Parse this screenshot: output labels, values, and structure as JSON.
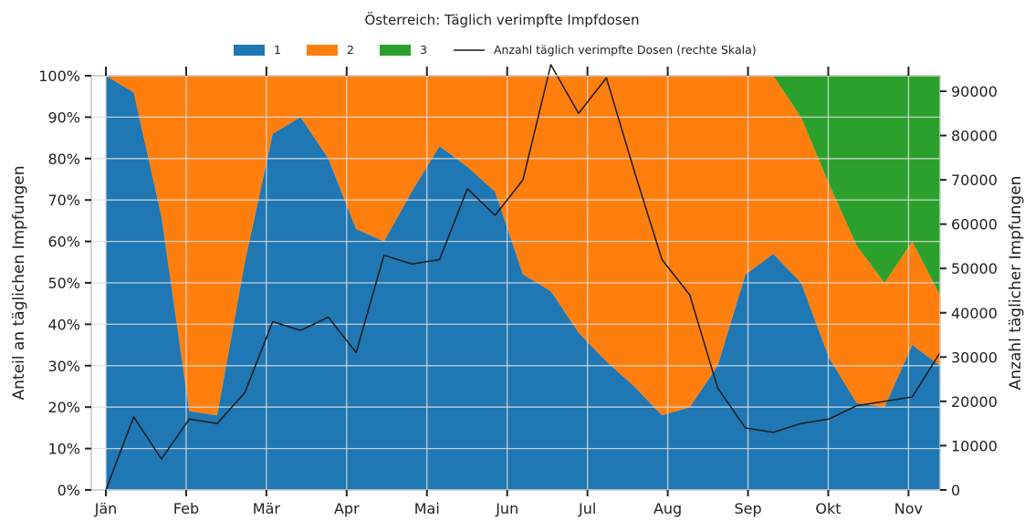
{
  "chart_data": {
    "type": "area",
    "title": "Österreich: Täglich verimpfte Impfdosen",
    "ylabel_left": "Anteil an täglichen Impfungen",
    "ylabel_right": "Anzahl täglicher Impfungen",
    "x_ticks": [
      "Jän",
      "Feb",
      "Mär",
      "Apr",
      "Mai",
      "Jun",
      "Jul",
      "Aug",
      "Sep",
      "Okt",
      "Nov"
    ],
    "y_left_ticks": [
      "0%",
      "10%",
      "20%",
      "30%",
      "40%",
      "50%",
      "60%",
      "70%",
      "80%",
      "90%",
      "100%"
    ],
    "y_right_ticks": [
      "0",
      "10000",
      "20000",
      "30000",
      "40000",
      "50000",
      "60000",
      "70000",
      "80000",
      "90000"
    ],
    "y_left_range": [
      0,
      100
    ],
    "y_right_range": [
      0,
      93500
    ],
    "grid": true,
    "legend_position": "top",
    "x": [
      "Jän",
      "Jän 15",
      "Feb",
      "Feb 5",
      "Feb 15",
      "Feb 20",
      "Mär",
      "Mär 10",
      "Mär 20",
      "Apr",
      "Apr 10",
      "Apr 20",
      "Mai",
      "Mai 10",
      "Mai 20",
      "Jun",
      "Jun 10",
      "Jun 20",
      "Jul",
      "Jul 15",
      "Aug",
      "Aug 10",
      "Aug 20",
      "Sep",
      "Sep 10",
      "Sep 20",
      "Okt",
      "Okt 10",
      "Okt 20",
      "Nov",
      "Nov 5"
    ],
    "series": [
      {
        "name": "1",
        "color": "#1f77b4",
        "values": [
          100,
          96,
          66,
          19,
          18,
          55,
          86,
          90,
          80,
          63,
          60,
          72,
          83,
          78,
          72,
          52,
          48,
          38,
          31,
          25,
          18,
          20,
          30,
          52,
          57,
          50,
          32,
          21,
          20,
          35,
          30
        ]
      },
      {
        "name": "2",
        "color": "#ff7f0e",
        "values": [
          0,
          4,
          34,
          81,
          82,
          45,
          14,
          10,
          20,
          37,
          40,
          28,
          17,
          22,
          28,
          48,
          52,
          62,
          69,
          75,
          82,
          80,
          70,
          48,
          43,
          40,
          42,
          38,
          30,
          25,
          17
        ]
      },
      {
        "name": "3",
        "color": "#2ca02c",
        "values": [
          0,
          0,
          0,
          0,
          0,
          0,
          0,
          0,
          0,
          0,
          0,
          0,
          0,
          0,
          0,
          0,
          0,
          0,
          0,
          0,
          0,
          0,
          0,
          0,
          0,
          10,
          26,
          41,
          50,
          40,
          53
        ]
      },
      {
        "name": "Anzahl täglich verimpfte Dosen (rechte Skala)",
        "type": "line",
        "color": "#1a1a1a",
        "values": [
          0,
          16500,
          7000,
          16000,
          15000,
          22000,
          38000,
          36000,
          39000,
          31000,
          53000,
          51000,
          52000,
          68000,
          62000,
          70000,
          96000,
          85000,
          93000,
          72000,
          52000,
          44000,
          23000,
          14000,
          13000,
          15000,
          16000,
          19000,
          20000,
          21000,
          31000
        ]
      }
    ]
  }
}
